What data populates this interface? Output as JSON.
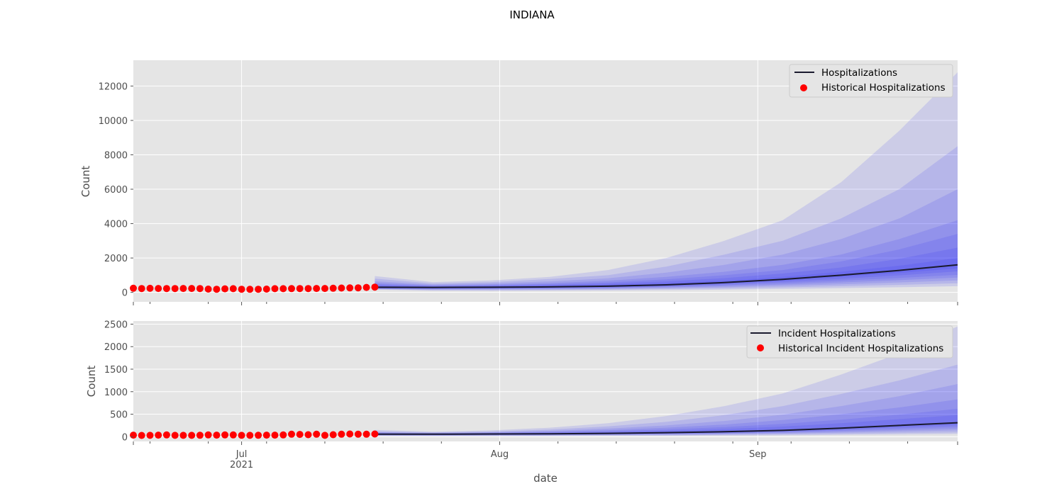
{
  "figure": {
    "title": "INDIANA",
    "xlabel": "date"
  },
  "colors": {
    "panel_bg": "#e5e5e5",
    "grid": "#ffffff",
    "band": "#2a2af5",
    "median_line": "#1a1a2e",
    "historical_points": "#ff0000"
  },
  "chart_data": [
    {
      "type": "line",
      "title": "",
      "ylabel": "Count",
      "xlabel": "",
      "x_range": [
        "2021-06-18",
        "2021-09-25"
      ],
      "ylim": [
        -550,
        13500
      ],
      "yticks": [
        0,
        2000,
        4000,
        6000,
        8000,
        10000,
        12000
      ],
      "grid": true,
      "legend_position": "top-right",
      "legend": [
        "Hospitalizations",
        "Historical Hospitalizations"
      ],
      "historical": {
        "name": "Historical Hospitalizations",
        "x": [
          "2021-06-18",
          "2021-06-19",
          "2021-06-20",
          "2021-06-21",
          "2021-06-22",
          "2021-06-23",
          "2021-06-24",
          "2021-06-25",
          "2021-06-26",
          "2021-06-27",
          "2021-06-28",
          "2021-06-29",
          "2021-06-30",
          "2021-07-01",
          "2021-07-02",
          "2021-07-03",
          "2021-07-04",
          "2021-07-05",
          "2021-07-06",
          "2021-07-07",
          "2021-07-08",
          "2021-07-09",
          "2021-07-10",
          "2021-07-11",
          "2021-07-12",
          "2021-07-13",
          "2021-07-14",
          "2021-07-15",
          "2021-07-16",
          "2021-07-17"
        ],
        "y": [
          240,
          225,
          235,
          230,
          225,
          225,
          230,
          230,
          225,
          190,
          185,
          210,
          215,
          185,
          180,
          185,
          190,
          215,
          215,
          220,
          225,
          225,
          230,
          230,
          240,
          255,
          260,
          265,
          290,
          305
        ]
      },
      "forecast": {
        "name": "Hospitalizations",
        "x": [
          "2021-07-17",
          "2021-07-24",
          "2021-07-31",
          "2021-08-07",
          "2021-08-14",
          "2021-08-21",
          "2021-08-28",
          "2021-09-04",
          "2021-09-11",
          "2021-09-18",
          "2021-09-25"
        ],
        "median": [
          300,
          290,
          300,
          320,
          360,
          440,
          570,
          760,
          1000,
          1280,
          1600
        ],
        "bands": [
          {
            "lower": [
              160,
              100,
              90,
              100,
              110,
              130,
              160,
              200,
              250,
              300,
              360
            ],
            "upper": [
              950,
              600,
              700,
              900,
              1300,
              2000,
              3000,
              4200,
              6400,
              9400,
              12800
            ]
          },
          {
            "lower": [
              180,
              130,
              130,
              140,
              160,
              190,
              230,
              290,
              360,
              440,
              530
            ],
            "upper": [
              800,
              520,
              600,
              780,
              1000,
              1500,
              2200,
              3000,
              4300,
              6000,
              8500
            ]
          },
          {
            "lower": [
              200,
              160,
              170,
              180,
              200,
              240,
              300,
              380,
              470,
              580,
              700
            ],
            "upper": [
              650,
              460,
              520,
              640,
              820,
              1150,
              1600,
              2200,
              3100,
              4300,
              6000
            ]
          },
          {
            "lower": [
              215,
              190,
              200,
              210,
              240,
              290,
              360,
              460,
              580,
              710,
              860
            ],
            "upper": [
              550,
              420,
              460,
              540,
              680,
              900,
              1200,
              1600,
              2200,
              3100,
              4200
            ]
          },
          {
            "lower": [
              230,
              210,
              220,
              240,
              270,
              330,
              420,
              540,
              680,
              840,
              1020
            ],
            "upper": [
              480,
              380,
              410,
              480,
              580,
              760,
              1000,
              1300,
              1800,
              2500,
              3400
            ]
          },
          {
            "lower": [
              245,
              230,
              240,
              260,
              300,
              370,
              480,
              620,
              790,
              990,
              1220
            ],
            "upper": [
              420,
              350,
              380,
              430,
              510,
              640,
              830,
              1100,
              1450,
              1950,
              2600
            ]
          },
          {
            "lower": [
              265,
              255,
              265,
              285,
              325,
              400,
              520,
              690,
              900,
              1130,
              1400
            ],
            "upper": [
              360,
              330,
              345,
              375,
              430,
              530,
              680,
              900,
              1200,
              1550,
              2000
            ]
          }
        ]
      }
    },
    {
      "type": "line",
      "title": "",
      "ylabel": "Count",
      "xlabel": "date",
      "x_range": [
        "2021-06-18",
        "2021-09-25"
      ],
      "ylim": [
        -105,
        2570
      ],
      "yticks": [
        0,
        500,
        1000,
        1500,
        2000,
        2500
      ],
      "grid": true,
      "legend_position": "top-right",
      "legend": [
        "Incident Hospitalizations",
        "Historical Incident Hospitalizations"
      ],
      "xticks": [
        {
          "date": "2021-07-01",
          "label": "Jul",
          "sublabel": "2021"
        },
        {
          "date": "2021-08-01",
          "label": "Aug",
          "sublabel": ""
        },
        {
          "date": "2021-09-01",
          "label": "Sep",
          "sublabel": ""
        }
      ],
      "historical": {
        "name": "Historical Incident Hospitalizations",
        "x": [
          "2021-06-18",
          "2021-06-19",
          "2021-06-20",
          "2021-06-21",
          "2021-06-22",
          "2021-06-23",
          "2021-06-24",
          "2021-06-25",
          "2021-06-26",
          "2021-06-27",
          "2021-06-28",
          "2021-06-29",
          "2021-06-30",
          "2021-07-01",
          "2021-07-02",
          "2021-07-03",
          "2021-07-04",
          "2021-07-05",
          "2021-07-06",
          "2021-07-07",
          "2021-07-08",
          "2021-07-09",
          "2021-07-10",
          "2021-07-11",
          "2021-07-12",
          "2021-07-13",
          "2021-07-14",
          "2021-07-15",
          "2021-07-16",
          "2021-07-17"
        ],
        "y": [
          35,
          28,
          30,
          35,
          40,
          30,
          30,
          30,
          32,
          40,
          35,
          40,
          40,
          30,
          30,
          32,
          35,
          35,
          40,
          55,
          50,
          45,
          55,
          30,
          45,
          55,
          60,
          55,
          55,
          60
        ]
      },
      "forecast": {
        "name": "Incident Hospitalizations",
        "x": [
          "2021-07-17",
          "2021-07-24",
          "2021-07-31",
          "2021-08-07",
          "2021-08-14",
          "2021-08-21",
          "2021-08-28",
          "2021-09-04",
          "2021-09-11",
          "2021-09-18",
          "2021-09-25"
        ],
        "median": [
          55,
          55,
          60,
          65,
          75,
          90,
          110,
          140,
          190,
          250,
          310
        ],
        "bands": [
          {
            "lower": [
              20,
              15,
              15,
              15,
              20,
              20,
              25,
              30,
              40,
              50,
              60
            ],
            "upper": [
              150,
              110,
              140,
              200,
              300,
              460,
              680,
              960,
              1380,
              1850,
              2450
            ]
          },
          {
            "lower": [
              25,
              20,
              22,
              24,
              28,
              32,
              40,
              50,
              65,
              80,
              95
            ],
            "upper": [
              120,
              95,
              115,
              160,
              230,
              330,
              480,
              680,
              950,
              1250,
              1600
            ]
          },
          {
            "lower": [
              30,
              28,
              30,
              32,
              38,
              45,
              55,
              70,
              90,
              115,
              140
            ],
            "upper": [
              100,
              85,
              100,
              130,
              180,
              250,
              350,
              490,
              680,
              900,
              1170
            ]
          },
          {
            "lower": [
              35,
              33,
              36,
              40,
              46,
              55,
              68,
              88,
              115,
              145,
              180
            ],
            "upper": [
              90,
              78,
              90,
              110,
              145,
              200,
              270,
              370,
              500,
              650,
              830
            ]
          },
          {
            "lower": [
              40,
              38,
              42,
              46,
              54,
              65,
              80,
              104,
              138,
              178,
              220
            ],
            "upper": [
              80,
              72,
              80,
              95,
              120,
              160,
              215,
              285,
              380,
              490,
              620
            ]
          },
          {
            "lower": [
              45,
              44,
              48,
              52,
              61,
              74,
              92,
              118,
              160,
              210,
              260
            ],
            "upper": [
              70,
              66,
              72,
              82,
              100,
              130,
              170,
              225,
              300,
              390,
              480
            ]
          }
        ]
      }
    }
  ]
}
